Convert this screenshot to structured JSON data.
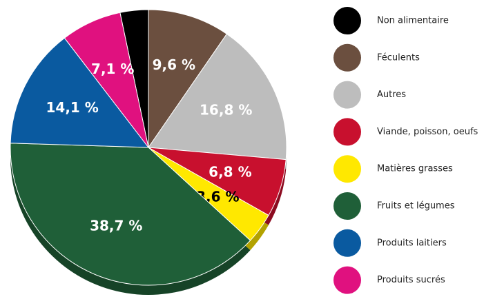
{
  "chart_data": {
    "type": "pie",
    "categories": [
      "Non alimentaire",
      "Féculents",
      "Autres",
      "Viande, poisson, oeufs",
      "Matières grasses",
      "Fruits et légumes",
      "Produits laitiers",
      "Produits sucrés"
    ],
    "values": [
      3.3,
      9.6,
      16.8,
      6.8,
      3.6,
      38.7,
      14.1,
      7.1
    ],
    "value_labels": [
      null,
      "9,6 %",
      "16,8 %",
      "6,8 %",
      "3,6 %",
      "38,7 %",
      "14,1 %",
      "7,1 %"
    ],
    "colors": [
      "#000000",
      "#6b4f3f",
      "#bdbdbd",
      "#c8102e",
      "#ffe800",
      "#1f5f38",
      "#0a5aa0",
      "#e0117f"
    ],
    "legend": "right"
  }
}
